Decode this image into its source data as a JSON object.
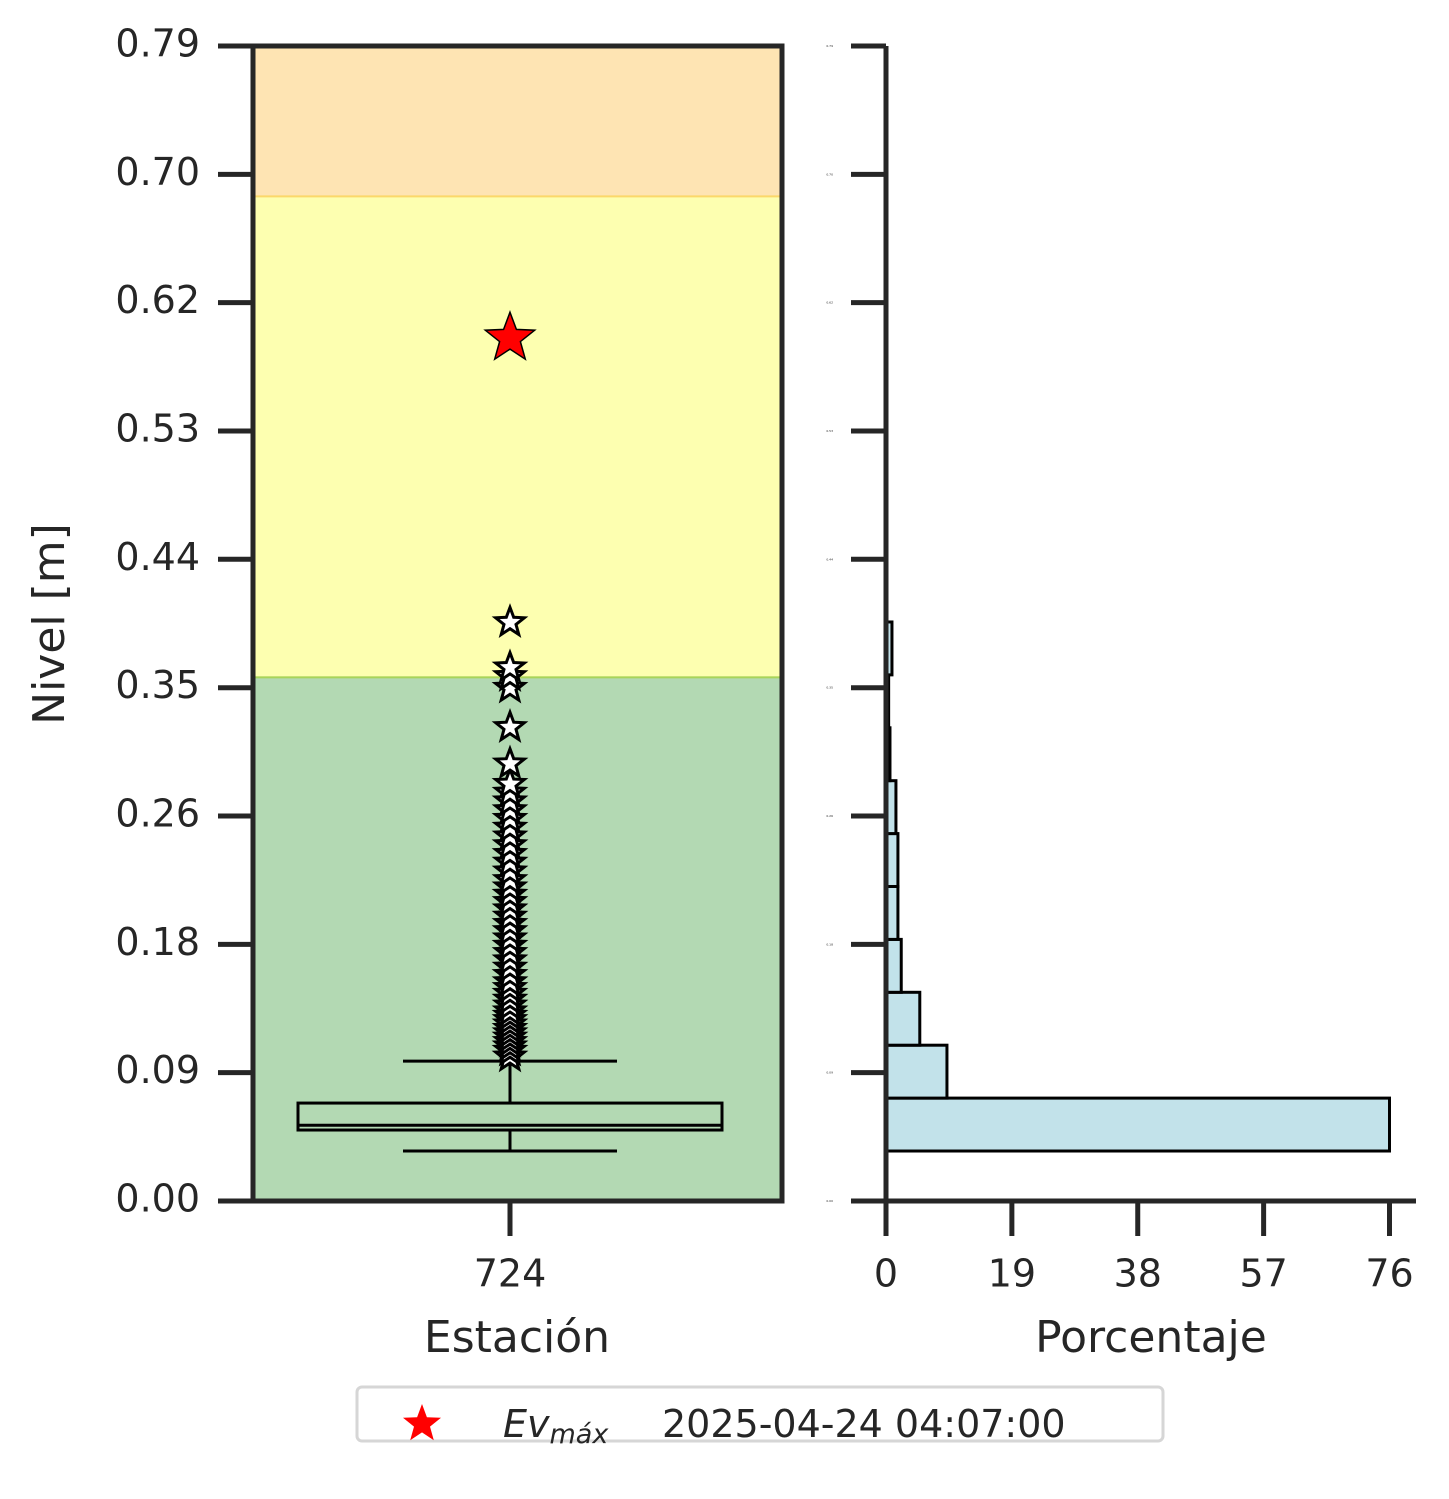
{
  "chart_data": [
    {
      "type": "box",
      "ylabel": "Nivel [m]",
      "xlabel": "Estación",
      "categories": [
        "724"
      ],
      "ylim": [
        0,
        0.7925
      ],
      "yticks": [
        {
          "value": 0,
          "label": "0.00"
        },
        {
          "value": 0.0881,
          "label": "0.09"
        },
        {
          "value": 0.1761,
          "label": "0.18"
        },
        {
          "value": 0.2642,
          "label": "0.26"
        },
        {
          "value": 0.3522,
          "label": "0.35"
        },
        {
          "value": 0.4403,
          "label": "0.44"
        },
        {
          "value": 0.5283,
          "label": "0.53"
        },
        {
          "value": 0.6164,
          "label": "0.62"
        },
        {
          "value": 0.7044,
          "label": "0.70"
        },
        {
          "value": 0.7925,
          "label": "0.79"
        }
      ],
      "bands": [
        {
          "from": 0,
          "to": 0.36,
          "color": "#b3d9b3",
          "edge": "#a8d45a"
        },
        {
          "from": 0.36,
          "to": 0.69,
          "color": "#fdffb0",
          "edge": "#fbd86a"
        },
        {
          "from": 0.69,
          "to": 0.7925,
          "color": "#fee4b3"
        }
      ],
      "box": {
        "whisker_low": 0.0343,
        "q1": 0.0487,
        "median": 0.052,
        "q3": 0.0672,
        "whisker_high": 0.096,
        "outliers": [
          0.099,
          0.103,
          0.106,
          0.109,
          0.112,
          0.115,
          0.118,
          0.121,
          0.124,
          0.127,
          0.13,
          0.134,
          0.138,
          0.142,
          0.146,
          0.15,
          0.155,
          0.16,
          0.165,
          0.17,
          0.175,
          0.18,
          0.185,
          0.19,
          0.195,
          0.2,
          0.205,
          0.21,
          0.215,
          0.22,
          0.226,
          0.232,
          0.238,
          0.244,
          0.25,
          0.256,
          0.262,
          0.268,
          0.274,
          0.28,
          0.286,
          0.3,
          0.325,
          0.352,
          0.36,
          0.366,
          0.397
        ]
      },
      "max_event": {
        "value": 0.592,
        "color": "#ff0000",
        "label_main": "Ev",
        "label_sub": "máx",
        "date": "2025-04-24 04:07:00"
      }
    },
    {
      "type": "histogram",
      "orientation": "horizontal",
      "xlabel": "Porcentaje",
      "color": "#c2e2ea",
      "bins": [
        0.0343,
        0.0706,
        0.1069,
        0.1432,
        0.1795,
        0.2158,
        0.2521,
        0.2884,
        0.3247,
        0.361,
        0.3973
      ],
      "values": [
        76,
        9.2,
        5.1,
        2.3,
        1.8,
        1.8,
        1.5,
        0.6,
        0.4,
        0.9
      ],
      "xlim": [
        0,
        80
      ],
      "xticks": [
        0,
        19,
        38,
        57,
        76
      ],
      "ylim": [
        0,
        0.7925
      ],
      "yticks": [
        {
          "value": 0,
          "label": "0.00"
        },
        {
          "value": 0.0881,
          "label": "0.09"
        },
        {
          "value": 0.1761,
          "label": "0.18"
        },
        {
          "value": 0.2642,
          "label": "0.26"
        },
        {
          "value": 0.3522,
          "label": "0.35"
        },
        {
          "value": 0.4403,
          "label": "0.44"
        },
        {
          "value": 0.5283,
          "label": "0.53"
        },
        {
          "value": 0.6164,
          "label": "0.62"
        },
        {
          "value": 0.7044,
          "label": "0.70"
        },
        {
          "value": 0.7925,
          "label": "0.79"
        }
      ]
    }
  ]
}
